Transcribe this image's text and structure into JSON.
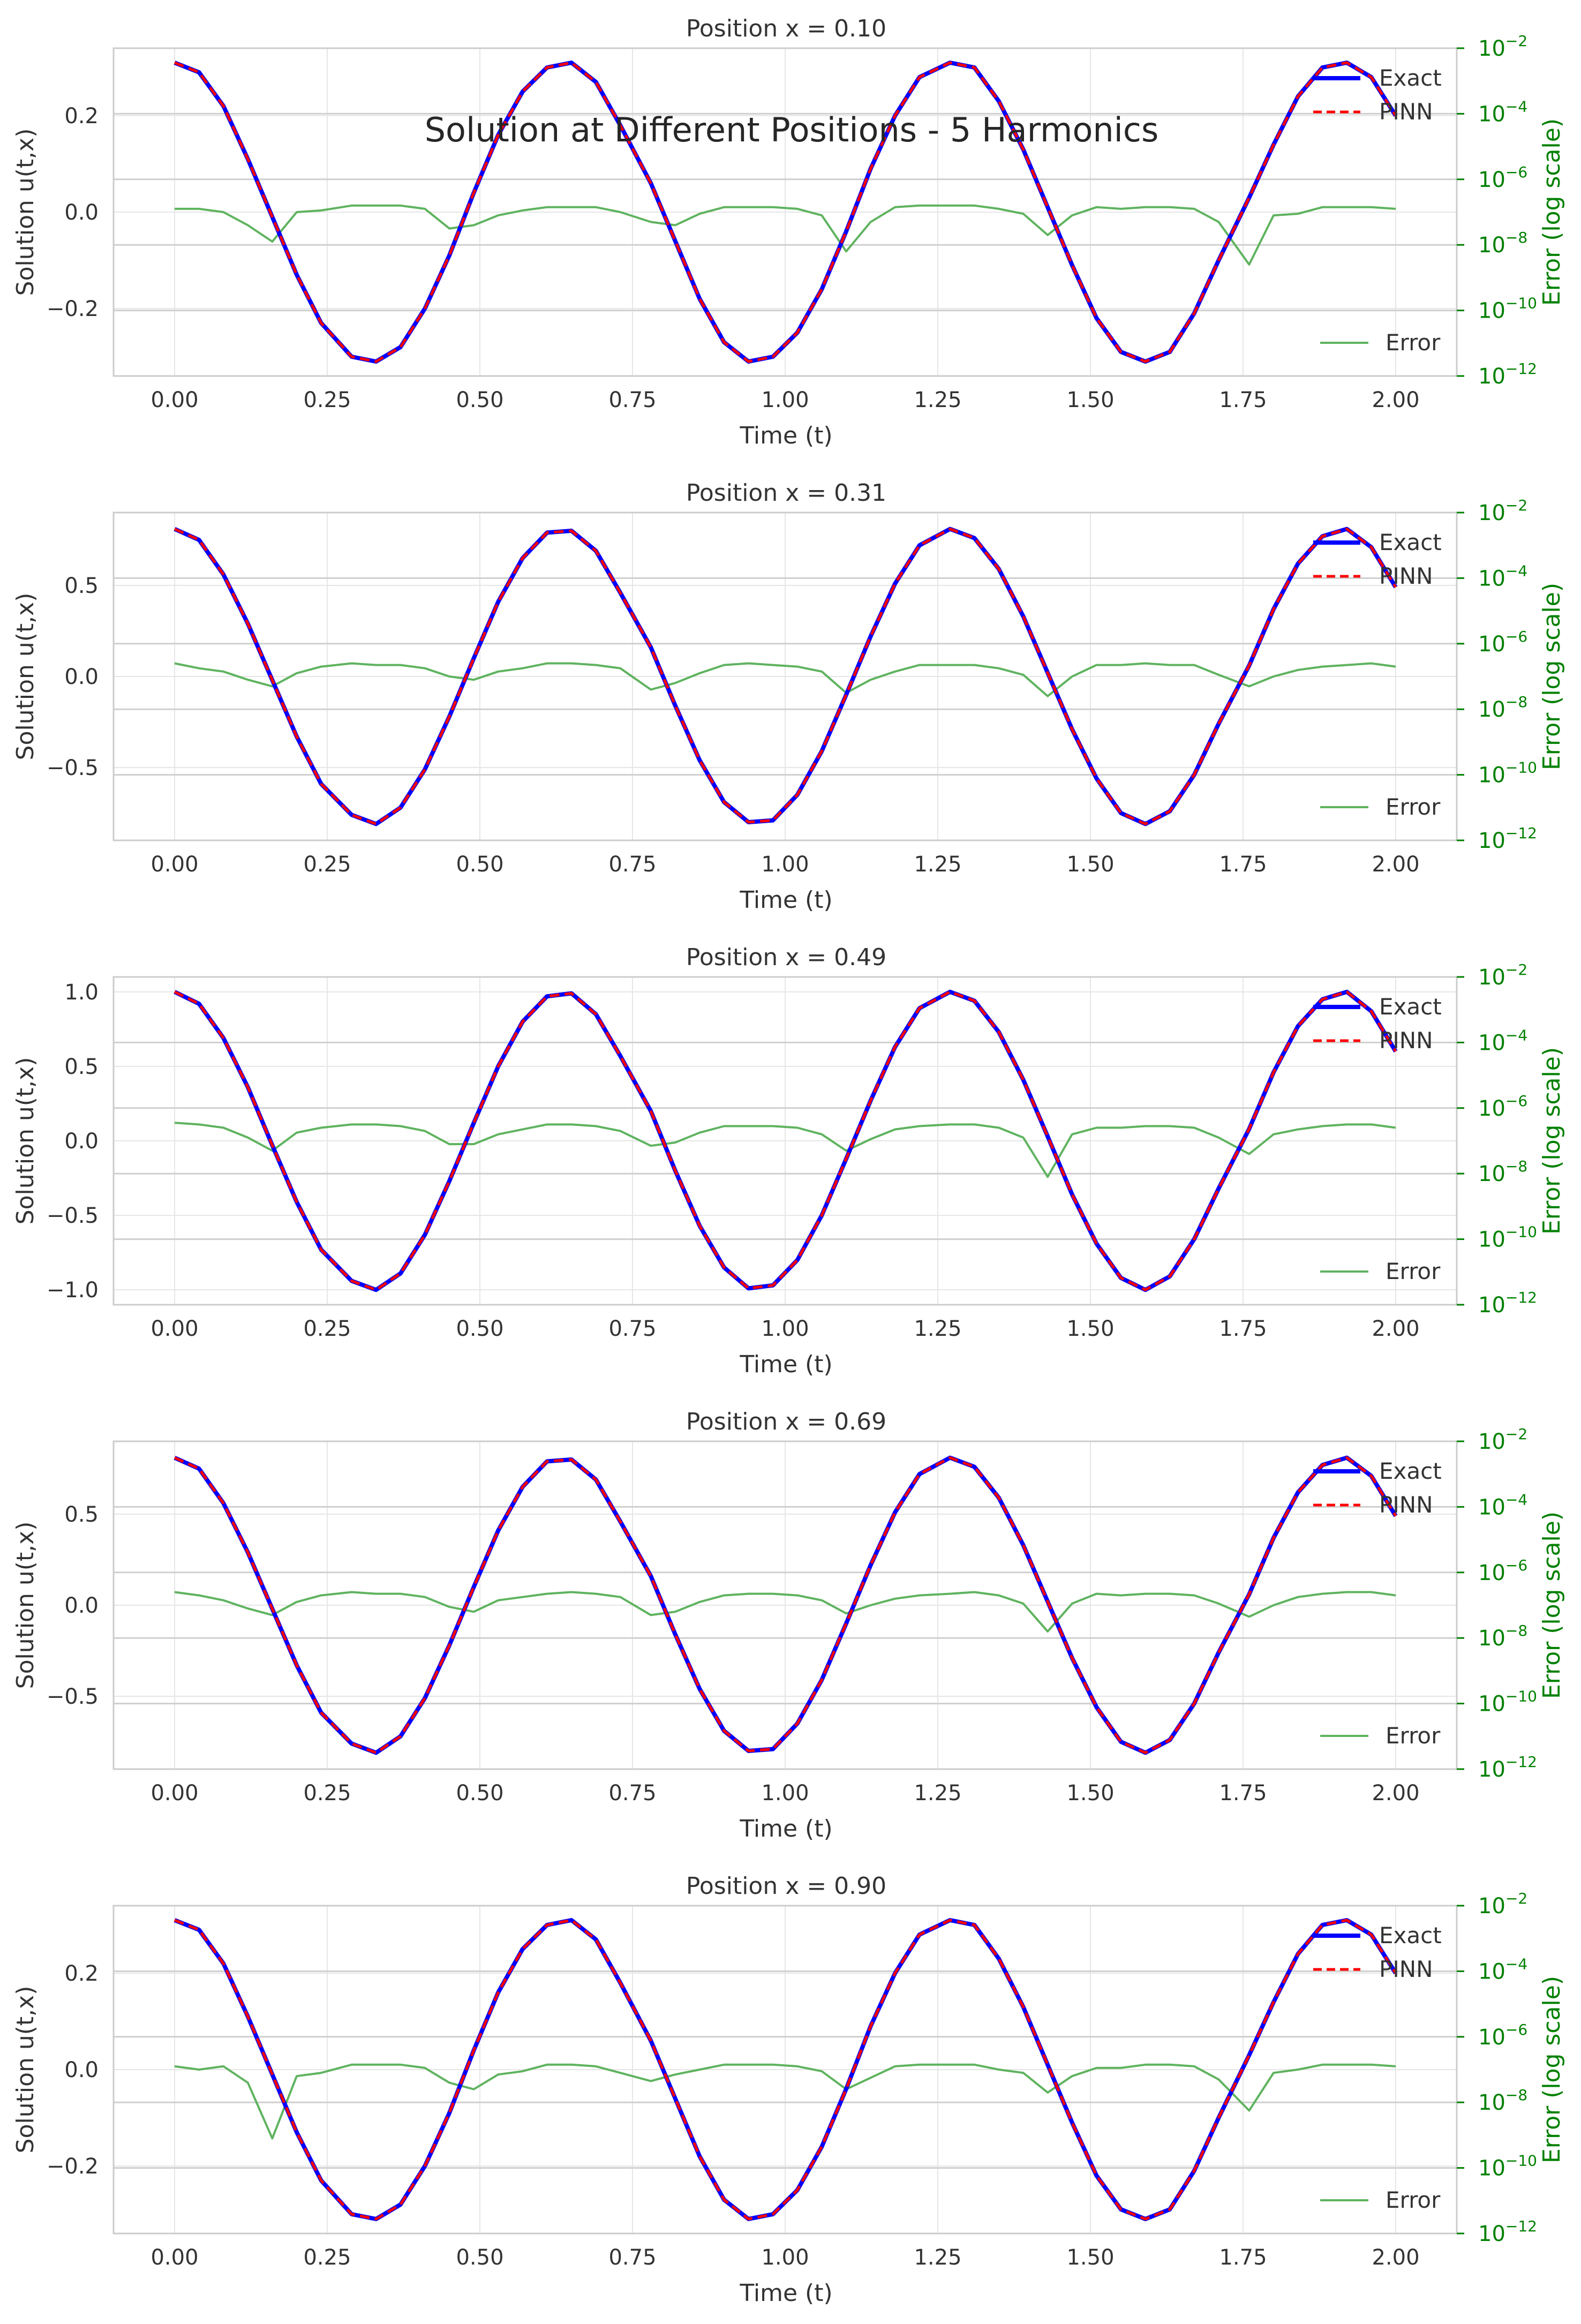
{
  "figure_title": "Solution at Different Positions - 5 Harmonics",
  "colors": {
    "exact": "#0000ff",
    "pinn": "#ff0000",
    "error": "#5fb35f",
    "right_axis": "#008000",
    "grid": "#e6e6e6",
    "spine": "#cccccc",
    "text": "#333333"
  },
  "legend": {
    "exact": "Exact",
    "pinn": "PINN",
    "error": "Error"
  },
  "chart_data": [
    {
      "type": "line",
      "title": "Position x = 0.10",
      "xlabel": "Time (t)",
      "ylabel": "Solution u(t,x)",
      "y2label": "Error (log scale)",
      "amplitude": 0.31,
      "ylim": [
        -0.34,
        0.34
      ],
      "yticks": [
        -0.2,
        0.0,
        0.2
      ],
      "yticklabels": [
        "−0.2",
        "0.0",
        "0.2"
      ],
      "xlim": [
        -0.1,
        2.1
      ],
      "xticks": [
        0,
        0.25,
        0.5,
        0.75,
        1.0,
        1.25,
        1.5,
        1.75,
        2.0
      ],
      "xticklabels": [
        "0.00",
        "0.25",
        "0.50",
        "0.75",
        "1.00",
        "1.25",
        "1.50",
        "1.75",
        "2.00"
      ],
      "y2lim_exp": [
        -12,
        -2
      ],
      "y2ticks_exp": [
        -12,
        -10,
        -8,
        -6,
        -4,
        -2
      ],
      "y2tick_base": "10",
      "legend_position": "upper-right and lower-right",
      "grid": true,
      "t": [
        0.0,
        0.04,
        0.08,
        0.12,
        0.16,
        0.2,
        0.24,
        0.29,
        0.33,
        0.37,
        0.41,
        0.45,
        0.49,
        0.53,
        0.57,
        0.61,
        0.65,
        0.69,
        0.73,
        0.78,
        0.82,
        0.86,
        0.9,
        0.94,
        0.98,
        1.02,
        1.06,
        1.1,
        1.14,
        1.18,
        1.22,
        1.27,
        1.31,
        1.35,
        1.39,
        1.43,
        1.47,
        1.51,
        1.55,
        1.59,
        1.63,
        1.67,
        1.71,
        1.76,
        1.8,
        1.84,
        1.88,
        1.92,
        1.96,
        2.0
      ],
      "exact": [
        0.31,
        0.29,
        0.22,
        0.11,
        -0.01,
        -0.13,
        -0.23,
        -0.3,
        -0.31,
        -0.28,
        -0.2,
        -0.09,
        0.04,
        0.16,
        0.25,
        0.3,
        0.31,
        0.27,
        0.18,
        0.06,
        -0.06,
        -0.18,
        -0.27,
        -0.31,
        -0.3,
        -0.25,
        -0.16,
        -0.04,
        0.09,
        0.2,
        0.28,
        0.31,
        0.3,
        0.23,
        0.13,
        0.01,
        -0.11,
        -0.22,
        -0.29,
        -0.31,
        -0.29,
        -0.21,
        -0.1,
        0.03,
        0.14,
        0.24,
        0.3,
        0.31,
        0.28,
        0.2
      ],
      "error_exp": [
        -6.9,
        -6.9,
        -7.0,
        -7.4,
        -7.9,
        -7.0,
        -6.95,
        -6.8,
        -6.8,
        -6.8,
        -6.9,
        -7.5,
        -7.4,
        -7.1,
        -6.95,
        -6.85,
        -6.85,
        -6.85,
        -7.0,
        -7.3,
        -7.4,
        -7.05,
        -6.85,
        -6.85,
        -6.85,
        -6.9,
        -7.1,
        -8.2,
        -7.3,
        -6.85,
        -6.8,
        -6.8,
        -6.8,
        -6.9,
        -7.05,
        -7.7,
        -7.1,
        -6.85,
        -6.9,
        -6.85,
        -6.85,
        -6.9,
        -7.3,
        -8.6,
        -7.1,
        -7.05,
        -6.85,
        -6.85,
        -6.85,
        -6.9
      ]
    },
    {
      "type": "line",
      "title": "Position x = 0.31",
      "xlabel": "Time (t)",
      "ylabel": "Solution u(t,x)",
      "y2label": "Error (log scale)",
      "amplitude": 0.81,
      "ylim": [
        -0.9,
        0.9
      ],
      "yticks": [
        -0.5,
        0.0,
        0.5
      ],
      "yticklabels": [
        "−0.5",
        "0.0",
        "0.5"
      ],
      "xlim": [
        -0.1,
        2.1
      ],
      "xticks": [
        0,
        0.25,
        0.5,
        0.75,
        1.0,
        1.25,
        1.5,
        1.75,
        2.0
      ],
      "xticklabels": [
        "0.00",
        "0.25",
        "0.50",
        "0.75",
        "1.00",
        "1.25",
        "1.50",
        "1.75",
        "2.00"
      ],
      "y2lim_exp": [
        -12,
        -2
      ],
      "y2ticks_exp": [
        -12,
        -10,
        -8,
        -6,
        -4,
        -2
      ],
      "y2tick_base": "10",
      "legend_position": "upper-right and lower-right",
      "grid": true,
      "t": [
        0.0,
        0.04,
        0.08,
        0.12,
        0.16,
        0.2,
        0.24,
        0.29,
        0.33,
        0.37,
        0.41,
        0.45,
        0.49,
        0.53,
        0.57,
        0.61,
        0.65,
        0.69,
        0.73,
        0.78,
        0.82,
        0.86,
        0.9,
        0.94,
        0.98,
        1.02,
        1.06,
        1.1,
        1.14,
        1.18,
        1.22,
        1.27,
        1.31,
        1.35,
        1.39,
        1.43,
        1.47,
        1.51,
        1.55,
        1.59,
        1.63,
        1.67,
        1.71,
        1.76,
        1.8,
        1.84,
        1.88,
        1.92,
        1.96,
        2.0
      ],
      "exact": [
        0.81,
        0.75,
        0.56,
        0.29,
        -0.02,
        -0.33,
        -0.59,
        -0.76,
        -0.81,
        -0.72,
        -0.51,
        -0.22,
        0.1,
        0.41,
        0.65,
        0.79,
        0.8,
        0.69,
        0.46,
        0.16,
        -0.16,
        -0.46,
        -0.69,
        -0.8,
        -0.79,
        -0.65,
        -0.41,
        -0.1,
        0.22,
        0.51,
        0.72,
        0.81,
        0.76,
        0.59,
        0.33,
        0.02,
        -0.29,
        -0.56,
        -0.75,
        -0.81,
        -0.74,
        -0.54,
        -0.26,
        0.06,
        0.37,
        0.62,
        0.77,
        0.81,
        0.71,
        0.49
      ],
      "error_exp": [
        -6.6,
        -6.75,
        -6.85,
        -7.1,
        -7.3,
        -6.9,
        -6.7,
        -6.6,
        -6.65,
        -6.65,
        -6.75,
        -7.0,
        -7.1,
        -6.85,
        -6.75,
        -6.6,
        -6.6,
        -6.65,
        -6.75,
        -7.4,
        -7.2,
        -6.9,
        -6.65,
        -6.6,
        -6.65,
        -6.7,
        -6.85,
        -7.5,
        -7.1,
        -6.85,
        -6.65,
        -6.65,
        -6.65,
        -6.75,
        -6.95,
        -7.6,
        -7.0,
        -6.65,
        -6.65,
        -6.6,
        -6.65,
        -6.65,
        -6.95,
        -7.3,
        -7.0,
        -6.8,
        -6.7,
        -6.65,
        -6.6,
        -6.7
      ]
    },
    {
      "type": "line",
      "title": "Position x = 0.49",
      "xlabel": "Time (t)",
      "ylabel": "Solution u(t,x)",
      "y2label": "Error (log scale)",
      "amplitude": 1.0,
      "ylim": [
        -1.1,
        1.1
      ],
      "yticks": [
        -1.0,
        -0.5,
        0.0,
        0.5,
        1.0
      ],
      "yticklabels": [
        "−1.0",
        "−0.5",
        "0.0",
        "0.5",
        "1.0"
      ],
      "xlim": [
        -0.1,
        2.1
      ],
      "xticks": [
        0,
        0.25,
        0.5,
        0.75,
        1.0,
        1.25,
        1.5,
        1.75,
        2.0
      ],
      "xticklabels": [
        "0.00",
        "0.25",
        "0.50",
        "0.75",
        "1.00",
        "1.25",
        "1.50",
        "1.75",
        "2.00"
      ],
      "y2lim_exp": [
        -12,
        -2
      ],
      "y2ticks_exp": [
        -12,
        -10,
        -8,
        -6,
        -4,
        -2
      ],
      "y2tick_base": "10",
      "legend_position": "upper-right and lower-right",
      "grid": true,
      "t": [
        0.0,
        0.04,
        0.08,
        0.12,
        0.16,
        0.2,
        0.24,
        0.29,
        0.33,
        0.37,
        0.41,
        0.45,
        0.49,
        0.53,
        0.57,
        0.61,
        0.65,
        0.69,
        0.73,
        0.78,
        0.82,
        0.86,
        0.9,
        0.94,
        0.98,
        1.02,
        1.06,
        1.1,
        1.14,
        1.18,
        1.22,
        1.27,
        1.31,
        1.35,
        1.39,
        1.43,
        1.47,
        1.51,
        1.55,
        1.59,
        1.63,
        1.67,
        1.71,
        1.76,
        1.8,
        1.84,
        1.88,
        1.92,
        1.96,
        2.0
      ],
      "exact": [
        1.0,
        0.92,
        0.69,
        0.36,
        -0.03,
        -0.41,
        -0.73,
        -0.94,
        -1.0,
        -0.89,
        -0.63,
        -0.27,
        0.12,
        0.5,
        0.8,
        0.97,
        0.99,
        0.85,
        0.57,
        0.2,
        -0.2,
        -0.57,
        -0.85,
        -0.99,
        -0.97,
        -0.8,
        -0.5,
        -0.12,
        0.27,
        0.63,
        0.89,
        1.0,
        0.94,
        0.73,
        0.41,
        0.03,
        -0.36,
        -0.69,
        -0.92,
        -1.0,
        -0.91,
        -0.66,
        -0.32,
        0.08,
        0.46,
        0.77,
        0.95,
        1.0,
        0.87,
        0.6
      ],
      "error_exp": [
        -6.45,
        -6.5,
        -6.6,
        -6.9,
        -7.3,
        -6.75,
        -6.6,
        -6.5,
        -6.5,
        -6.55,
        -6.7,
        -7.1,
        -7.1,
        -6.8,
        -6.65,
        -6.5,
        -6.5,
        -6.55,
        -6.7,
        -7.15,
        -7.05,
        -6.75,
        -6.55,
        -6.55,
        -6.55,
        -6.6,
        -6.8,
        -7.3,
        -6.95,
        -6.65,
        -6.55,
        -6.5,
        -6.5,
        -6.6,
        -6.9,
        -8.1,
        -6.8,
        -6.6,
        -6.6,
        -6.55,
        -6.55,
        -6.6,
        -6.9,
        -7.4,
        -6.8,
        -6.65,
        -6.55,
        -6.5,
        -6.5,
        -6.6
      ]
    },
    {
      "type": "line",
      "title": "Position x = 0.69",
      "xlabel": "Time (t)",
      "ylabel": "Solution u(t,x)",
      "y2label": "Error (log scale)",
      "amplitude": 0.81,
      "ylim": [
        -0.9,
        0.9
      ],
      "yticks": [
        -0.5,
        0.0,
        0.5
      ],
      "yticklabels": [
        "−0.5",
        "0.0",
        "0.5"
      ],
      "xlim": [
        -0.1,
        2.1
      ],
      "xticks": [
        0,
        0.25,
        0.5,
        0.75,
        1.0,
        1.25,
        1.5,
        1.75,
        2.0
      ],
      "xticklabels": [
        "0.00",
        "0.25",
        "0.50",
        "0.75",
        "1.00",
        "1.25",
        "1.50",
        "1.75",
        "2.00"
      ],
      "y2lim_exp": [
        -12,
        -2
      ],
      "y2ticks_exp": [
        -12,
        -10,
        -8,
        -6,
        -4,
        -2
      ],
      "y2tick_base": "10",
      "legend_position": "upper-right and lower-right",
      "grid": true,
      "t": [
        0.0,
        0.04,
        0.08,
        0.12,
        0.16,
        0.2,
        0.24,
        0.29,
        0.33,
        0.37,
        0.41,
        0.45,
        0.49,
        0.53,
        0.57,
        0.61,
        0.65,
        0.69,
        0.73,
        0.78,
        0.82,
        0.86,
        0.9,
        0.94,
        0.98,
        1.02,
        1.06,
        1.1,
        1.14,
        1.18,
        1.22,
        1.27,
        1.31,
        1.35,
        1.39,
        1.43,
        1.47,
        1.51,
        1.55,
        1.59,
        1.63,
        1.67,
        1.71,
        1.76,
        1.8,
        1.84,
        1.88,
        1.92,
        1.96,
        2.0
      ],
      "exact": [
        0.81,
        0.75,
        0.56,
        0.29,
        -0.02,
        -0.33,
        -0.59,
        -0.76,
        -0.81,
        -0.72,
        -0.51,
        -0.22,
        0.1,
        0.41,
        0.65,
        0.79,
        0.8,
        0.69,
        0.46,
        0.16,
        -0.16,
        -0.46,
        -0.69,
        -0.8,
        -0.79,
        -0.65,
        -0.41,
        -0.1,
        0.22,
        0.51,
        0.72,
        0.81,
        0.76,
        0.59,
        0.33,
        0.02,
        -0.29,
        -0.56,
        -0.75,
        -0.81,
        -0.74,
        -0.54,
        -0.26,
        0.06,
        0.37,
        0.62,
        0.77,
        0.81,
        0.71,
        0.49
      ],
      "error_exp": [
        -6.6,
        -6.7,
        -6.85,
        -7.1,
        -7.3,
        -6.9,
        -6.7,
        -6.6,
        -6.65,
        -6.65,
        -6.75,
        -7.05,
        -7.2,
        -6.85,
        -6.75,
        -6.65,
        -6.6,
        -6.65,
        -6.75,
        -7.3,
        -7.2,
        -6.9,
        -6.7,
        -6.65,
        -6.65,
        -6.7,
        -6.85,
        -7.25,
        -7.0,
        -6.8,
        -6.7,
        -6.65,
        -6.6,
        -6.7,
        -6.95,
        -7.8,
        -6.95,
        -6.65,
        -6.7,
        -6.65,
        -6.65,
        -6.7,
        -6.95,
        -7.35,
        -7.0,
        -6.75,
        -6.65,
        -6.6,
        -6.6,
        -6.7
      ]
    },
    {
      "type": "line",
      "title": "Position x = 0.90",
      "xlabel": "Time (t)",
      "ylabel": "Solution u(t,x)",
      "y2label": "Error (log scale)",
      "amplitude": 0.31,
      "ylim": [
        -0.34,
        0.34
      ],
      "yticks": [
        -0.2,
        0.0,
        0.2
      ],
      "yticklabels": [
        "−0.2",
        "0.0",
        "0.2"
      ],
      "xlim": [
        -0.1,
        2.1
      ],
      "xticks": [
        0,
        0.25,
        0.5,
        0.75,
        1.0,
        1.25,
        1.5,
        1.75,
        2.0
      ],
      "xticklabels": [
        "0.00",
        "0.25",
        "0.50",
        "0.75",
        "1.00",
        "1.25",
        "1.50",
        "1.75",
        "2.00"
      ],
      "y2lim_exp": [
        -12,
        -2
      ],
      "y2ticks_exp": [
        -12,
        -10,
        -8,
        -6,
        -4,
        -2
      ],
      "y2tick_base": "10",
      "legend_position": "upper-right and lower-right",
      "grid": true,
      "t": [
        0.0,
        0.04,
        0.08,
        0.12,
        0.16,
        0.2,
        0.24,
        0.29,
        0.33,
        0.37,
        0.41,
        0.45,
        0.49,
        0.53,
        0.57,
        0.61,
        0.65,
        0.69,
        0.73,
        0.78,
        0.82,
        0.86,
        0.9,
        0.94,
        0.98,
        1.02,
        1.06,
        1.1,
        1.14,
        1.18,
        1.22,
        1.27,
        1.31,
        1.35,
        1.39,
        1.43,
        1.47,
        1.51,
        1.55,
        1.59,
        1.63,
        1.67,
        1.71,
        1.76,
        1.8,
        1.84,
        1.88,
        1.92,
        1.96,
        2.0
      ],
      "exact": [
        0.31,
        0.29,
        0.22,
        0.11,
        -0.01,
        -0.13,
        -0.23,
        -0.3,
        -0.31,
        -0.28,
        -0.2,
        -0.09,
        0.04,
        0.16,
        0.25,
        0.3,
        0.31,
        0.27,
        0.18,
        0.06,
        -0.06,
        -0.18,
        -0.27,
        -0.31,
        -0.3,
        -0.25,
        -0.16,
        -0.04,
        0.09,
        0.2,
        0.28,
        0.31,
        0.3,
        0.23,
        0.13,
        0.01,
        -0.11,
        -0.22,
        -0.29,
        -0.31,
        -0.29,
        -0.21,
        -0.1,
        0.03,
        0.14,
        0.24,
        0.3,
        0.31,
        0.28,
        0.2
      ],
      "error_exp": [
        -6.9,
        -7.0,
        -6.9,
        -7.4,
        -9.1,
        -7.2,
        -7.1,
        -6.85,
        -6.85,
        -6.85,
        -6.95,
        -7.4,
        -7.6,
        -7.15,
        -7.05,
        -6.85,
        -6.85,
        -6.9,
        -7.1,
        -7.35,
        -7.15,
        -7.0,
        -6.85,
        -6.85,
        -6.85,
        -6.9,
        -7.05,
        -7.6,
        -7.25,
        -6.9,
        -6.85,
        -6.85,
        -6.85,
        -7.0,
        -7.1,
        -7.7,
        -7.2,
        -6.95,
        -6.95,
        -6.85,
        -6.85,
        -6.9,
        -7.3,
        -8.25,
        -7.1,
        -7.0,
        -6.85,
        -6.85,
        -6.85,
        -6.9
      ]
    }
  ]
}
